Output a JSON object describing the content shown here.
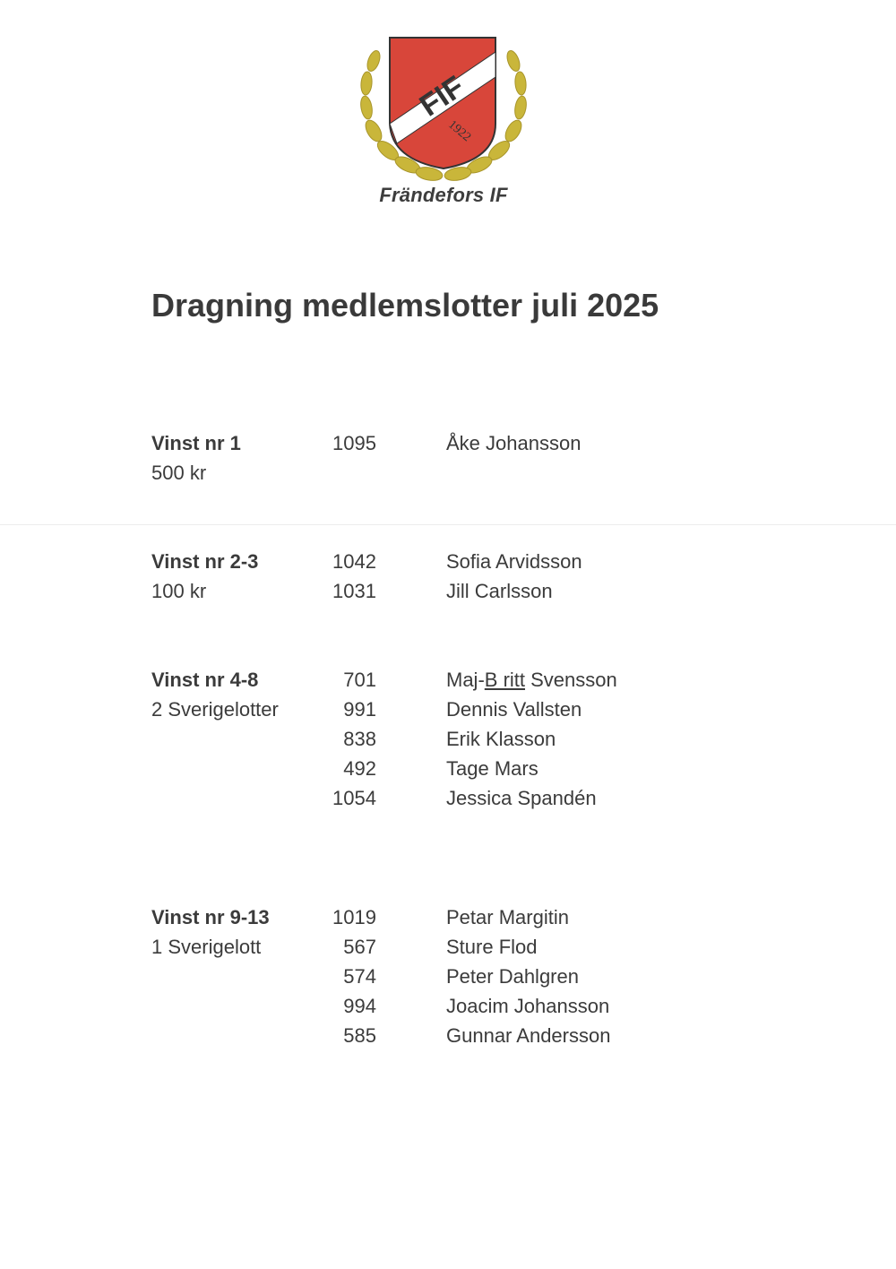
{
  "logo": {
    "shield_text": "FIF",
    "year": "1922",
    "caption": "Frändefors IF",
    "colors": {
      "red": "#d8463a",
      "gold": "#c9b63a",
      "dark": "#333333"
    }
  },
  "title": "Dragning medlemslotter juli 2025",
  "groups": [
    {
      "label": "Vinst nr 1",
      "prize": "500 kr",
      "rows": [
        {
          "number": "1095",
          "name": "Åke Johansson"
        }
      ]
    },
    {
      "label": "Vinst nr 2-3",
      "prize": "100 kr",
      "rows": [
        {
          "number": "1042",
          "name": "Sofia Arvidsson"
        },
        {
          "number": "1031",
          "name": "Jill Carlsson"
        }
      ]
    },
    {
      "label": "Vinst nr 4-8",
      "prize": "2 Sverigelotter",
      "rows": [
        {
          "number": "701",
          "name_prefix": "Maj-",
          "name_underlined": "B ritt",
          "name_suffix": " Svensson"
        },
        {
          "number": "991",
          "name": "Dennis Vallsten"
        },
        {
          "number": "838",
          "name": "Erik Klasson"
        },
        {
          "number": "492",
          "name": "Tage Mars"
        },
        {
          "number": "1054",
          "name": "Jessica Spandén"
        }
      ]
    },
    {
      "label": "Vinst nr 9-13",
      "prize": "1 Sverigelott",
      "rows": [
        {
          "number": "1019",
          "name": "Petar Margitin"
        },
        {
          "number": "567",
          "name": "Sture Flod"
        },
        {
          "number": "574",
          "name": "Peter Dahlgren"
        },
        {
          "number": "994",
          "name": "Joacim Johansson"
        },
        {
          "number": "585",
          "name": "Gunnar Andersson"
        }
      ]
    }
  ]
}
